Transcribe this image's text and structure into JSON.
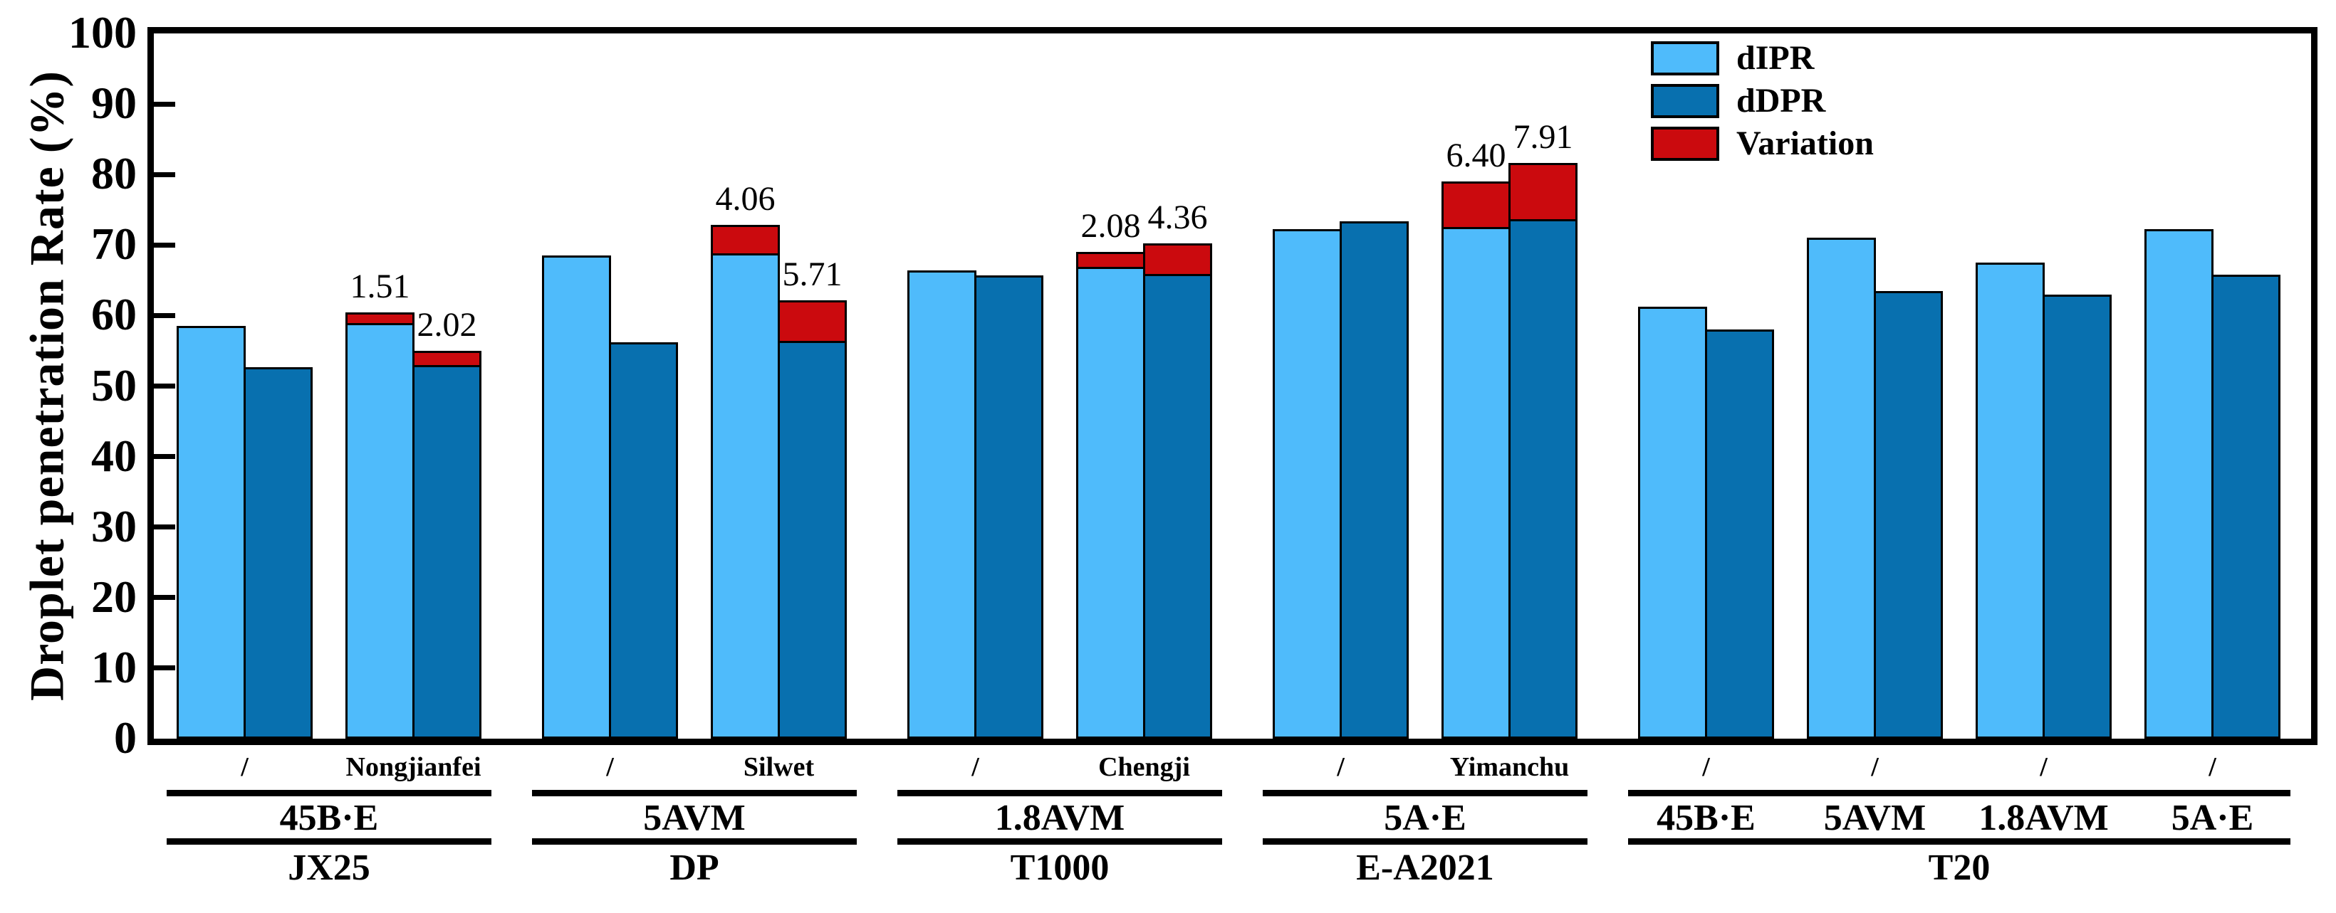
{
  "figure": {
    "background": "#ffffff"
  },
  "y_axis": {
    "title": "Droplet penetration Rate (%)",
    "min": 0,
    "max": 100,
    "tick_step": 10,
    "tick_labels": [
      "0",
      "10",
      "20",
      "30",
      "40",
      "50",
      "60",
      "70",
      "80",
      "90",
      "100"
    ]
  },
  "legend": {
    "items": [
      {
        "label": "dIPR",
        "color": "#4FBBFB"
      },
      {
        "label": "dDPR",
        "color": "#0870AF"
      },
      {
        "label": "Variation",
        "color": "#CB0A0E"
      }
    ]
  },
  "chart_data": {
    "type": "bar",
    "title": "",
    "xlabel": "",
    "ylabel": "Droplet penetration Rate (%)",
    "ylim": [
      0,
      100
    ],
    "grid": false,
    "legend_position": "top-right",
    "series_names": [
      "dIPR",
      "dDPR",
      "Variation"
    ],
    "colors": {
      "dIPR": "#4FBBFB",
      "dDPR": "#0870AF",
      "Variation": "#CB0A0E"
    },
    "groups": [
      {
        "name": "JX25",
        "chemical": "45B·E",
        "pairs": [
          {
            "adjuvant": "/",
            "dIPR": 58.5,
            "dDPR": 52.7,
            "dIPR_variation": null,
            "dDPR_variation": null
          },
          {
            "adjuvant": "Nongjianfei",
            "dIPR": 58.9,
            "dDPR": 53.0,
            "dIPR_variation": "1.51",
            "dDPR_variation": "2.02"
          }
        ]
      },
      {
        "name": "DP",
        "chemical": "5AVM",
        "pairs": [
          {
            "adjuvant": "/",
            "dIPR": 68.5,
            "dDPR": 56.2,
            "dIPR_variation": null,
            "dDPR_variation": null
          },
          {
            "adjuvant": "Silwet",
            "dIPR": 68.8,
            "dDPR": 56.4,
            "dIPR_variation": "4.06",
            "dDPR_variation": "5.71"
          }
        ]
      },
      {
        "name": "T1000",
        "chemical": "1.8AVM",
        "pairs": [
          {
            "adjuvant": "/",
            "dIPR": 66.4,
            "dDPR": 65.7,
            "dIPR_variation": null,
            "dDPR_variation": null
          },
          {
            "adjuvant": "Chengji",
            "dIPR": 66.9,
            "dDPR": 65.9,
            "dIPR_variation": "2.08",
            "dDPR_variation": "4.36"
          }
        ]
      },
      {
        "name": "E-A2021",
        "chemical": "5A·E",
        "pairs": [
          {
            "adjuvant": "/",
            "dIPR": 72.3,
            "dDPR": 73.4,
            "dIPR_variation": null,
            "dDPR_variation": null
          },
          {
            "adjuvant": "Yimanchu",
            "dIPR": 72.6,
            "dDPR": 73.7,
            "dIPR_variation": "6.40",
            "dDPR_variation": "7.91"
          }
        ]
      },
      {
        "name": "T20",
        "chemical": null,
        "pairs": [
          {
            "adjuvant": "/",
            "chemical": "45B·E",
            "dIPR": 61.3,
            "dDPR": 58.0,
            "dIPR_variation": null,
            "dDPR_variation": null
          },
          {
            "adjuvant": "/",
            "chemical": "5AVM",
            "dIPR": 71.0,
            "dDPR": 63.5,
            "dIPR_variation": null,
            "dDPR_variation": null
          },
          {
            "adjuvant": "/",
            "chemical": "1.8AVM",
            "dIPR": 67.5,
            "dDPR": 63.0,
            "dIPR_variation": null,
            "dDPR_variation": null
          },
          {
            "adjuvant": "/",
            "chemical": "5A·E",
            "dIPR": 72.3,
            "dDPR": 65.8,
            "dIPR_variation": null,
            "dDPR_variation": null
          }
        ]
      }
    ]
  }
}
